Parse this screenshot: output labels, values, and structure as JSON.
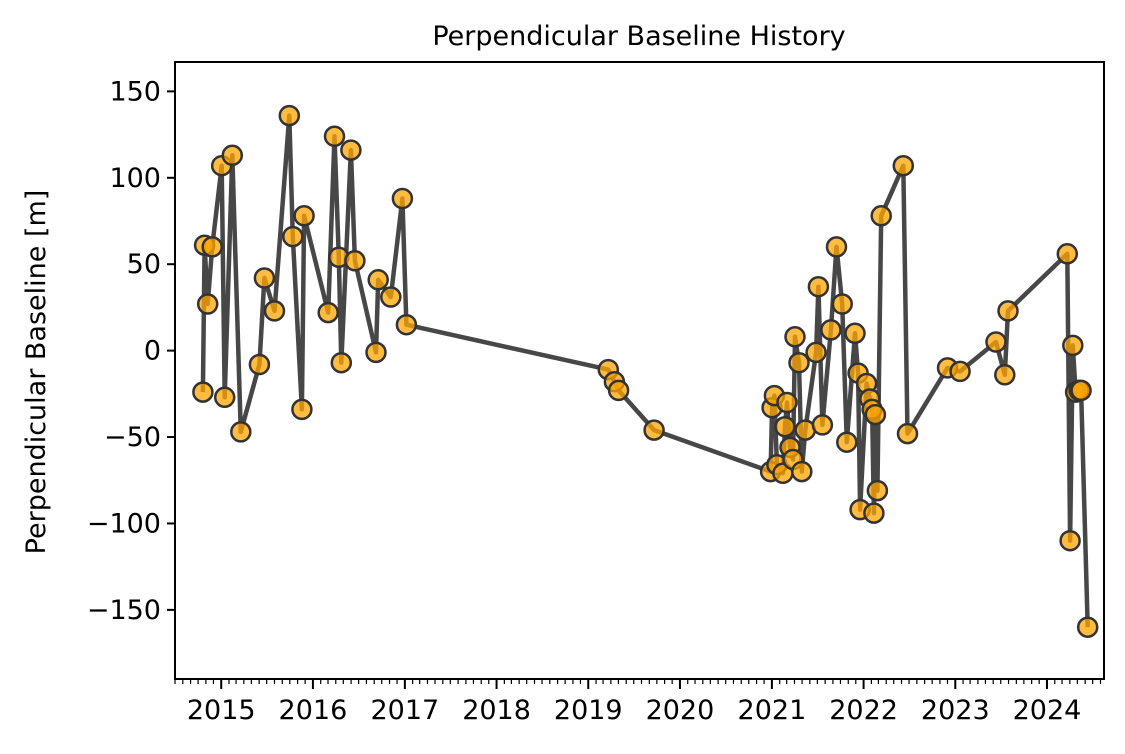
{
  "chart_data": {
    "type": "line",
    "title": "Perpendicular Baseline History",
    "xlabel": "",
    "ylabel": "Perpendicular Baseline [m]",
    "xlim": [
      "2014-07-01",
      "2024-08-15"
    ],
    "ylim": [
      -190,
      167
    ],
    "x_tick_labels": [
      "2015",
      "2016",
      "2017",
      "2018",
      "2019",
      "2020",
      "2021",
      "2022",
      "2023",
      "2024"
    ],
    "y_ticks": [
      150,
      100,
      50,
      0,
      -50,
      -100,
      -150
    ],
    "y_tick_labels": [
      "150",
      "100",
      "50",
      "0",
      "−50",
      "−100",
      "−150"
    ],
    "grid": false,
    "colors": {
      "line": "#333333",
      "marker_fill": "#ffa500",
      "marker_edge": "#333333"
    },
    "series": [
      {
        "x": [
          "2014-10-20",
          "2014-10-27",
          "2014-11-08",
          "2014-11-26",
          "2015-01-03",
          "2015-01-15",
          "2015-02-14",
          "2015-03-20",
          "2015-06-02",
          "2015-06-22",
          "2015-08-01",
          "2015-09-29",
          "2015-10-13",
          "2015-11-18",
          "2015-11-27",
          "2016-03-02",
          "2016-03-27",
          "2016-04-13",
          "2016-04-23",
          "2016-05-31",
          "2016-06-16",
          "2016-09-08",
          "2016-09-17",
          "2016-11-06",
          "2016-12-22",
          "2017-01-07",
          "2019-03-22",
          "2019-04-15",
          "2019-05-02",
          "2019-09-20",
          "2020-12-27",
          "2021-01-02",
          "2021-01-11",
          "2021-01-21",
          "2021-02-14",
          "2021-02-22",
          "2021-03-02",
          "2021-03-14",
          "2021-03-26",
          "2021-04-03",
          "2021-04-19",
          "2021-04-30",
          "2021-05-14",
          "2021-06-26",
          "2021-07-05",
          "2021-07-21",
          "2021-08-24",
          "2021-09-15",
          "2021-10-08",
          "2021-10-26",
          "2021-11-28",
          "2021-12-10",
          "2021-12-18",
          "2022-01-13",
          "2022-01-26",
          "2022-02-04",
          "2022-02-11",
          "2022-02-17",
          "2022-02-25",
          "2022-03-12",
          "2022-06-08",
          "2022-06-25",
          "2022-12-01",
          "2023-01-20",
          "2023-06-12",
          "2023-07-17",
          "2023-07-30",
          "2024-03-22",
          "2024-04-02",
          "2024-04-13",
          "2024-04-24",
          "2024-05-08",
          "2024-05-16",
          "2024-06-11"
        ],
        "y": [
          -24,
          61,
          27,
          60,
          107,
          -27,
          113,
          -47,
          -8,
          42,
          23,
          136,
          66,
          -34,
          78,
          22,
          124,
          54,
          -7,
          116,
          52,
          -1,
          41,
          31,
          88,
          15,
          -11,
          -18,
          -23,
          -46,
          -70,
          -33,
          -26,
          -66,
          -71,
          -44,
          -30,
          -56,
          -63,
          8,
          -7,
          -70,
          -46,
          -1,
          37,
          -43,
          12,
          60,
          27,
          -53,
          10,
          -13,
          -92,
          -19,
          -28,
          -34,
          -94,
          -37,
          -81,
          78,
          107,
          -48,
          -10,
          -12,
          5,
          -14,
          23,
          56,
          -110,
          3,
          -24,
          -23,
          -23,
          -160
        ]
      }
    ]
  }
}
